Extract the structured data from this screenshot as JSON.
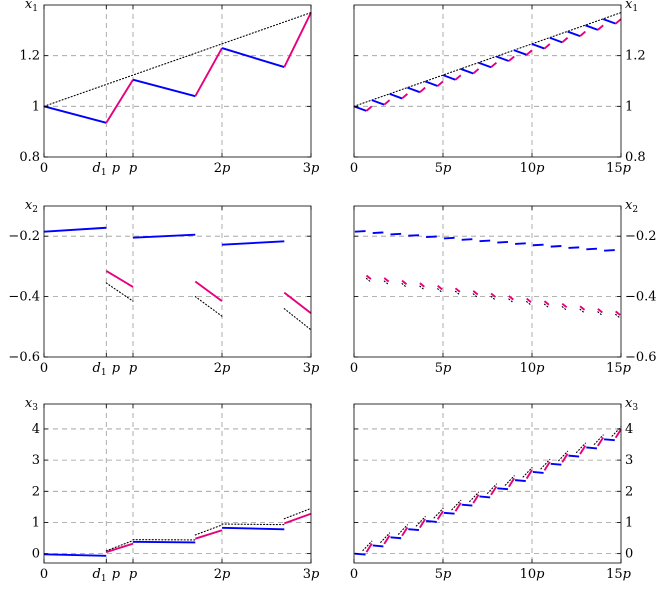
{
  "chart_data": [
    {
      "id": "x1-left",
      "type": "line",
      "ylabel": "x1",
      "xlim": [
        0,
        3
      ],
      "ylim": [
        0.8,
        1.4
      ],
      "yticks": [
        0.8,
        1,
        1.2
      ],
      "xticks": [
        {
          "v": 0,
          "label": "0"
        },
        {
          "v": 0.7,
          "label": "d1p"
        },
        {
          "v": 1,
          "label": "p"
        },
        {
          "v": 2,
          "label": "2p"
        },
        {
          "v": 3,
          "label": "3p"
        }
      ],
      "segments": [
        {
          "color": "#0000ff",
          "pts": [
            [
              0,
              1
            ],
            [
              0.7,
              0.935
            ]
          ]
        },
        {
          "color": "#e6007e",
          "pts": [
            [
              0.7,
              0.935
            ],
            [
              1,
              1.105
            ]
          ]
        },
        {
          "color": "#0000ff",
          "pts": [
            [
              1,
              1.105
            ],
            [
              1.7,
              1.04
            ]
          ]
        },
        {
          "color": "#e6007e",
          "pts": [
            [
              1.7,
              1.04
            ],
            [
              2,
              1.23
            ]
          ]
        },
        {
          "color": "#0000ff",
          "pts": [
            [
              2,
              1.23
            ],
            [
              2.7,
              1.155
            ]
          ]
        },
        {
          "color": "#e6007e",
          "pts": [
            [
              2.7,
              1.155
            ],
            [
              3,
              1.37
            ]
          ]
        },
        {
          "color": "#000000",
          "dotted": true,
          "pts": [
            [
              0,
              1
            ],
            [
              3,
              1.37
            ]
          ]
        }
      ]
    },
    {
      "id": "x1-right",
      "type": "line",
      "ylabel": "x1",
      "xlim": [
        0,
        15
      ],
      "ylim": [
        0.8,
        1.4
      ],
      "yticks": [
        0.8,
        1,
        1.2
      ],
      "xticks": [
        {
          "v": 0,
          "label": "0"
        },
        {
          "v": 5,
          "label": "5p"
        },
        {
          "v": 10,
          "label": "10p"
        },
        {
          "v": 15,
          "label": "15p"
        }
      ],
      "pattern": {
        "kind": "saw",
        "periods": 15,
        "blue": [
          1.0,
          0.0246,
          -0.018
        ],
        "pink": [
          0.982,
          0.0246,
          0.018
        ]
      },
      "segments": [
        {
          "color": "#000000",
          "dotted": true,
          "pts": [
            [
              0,
              1
            ],
            [
              15,
              1.37
            ]
          ]
        }
      ]
    },
    {
      "id": "x2-left",
      "type": "line",
      "ylabel": "x2",
      "xlim": [
        0,
        3
      ],
      "ylim": [
        -0.6,
        -0.1
      ],
      "yticks": [
        -0.6,
        -0.4,
        -0.2
      ],
      "xticks": [
        {
          "v": 0,
          "label": "0"
        },
        {
          "v": 0.7,
          "label": "d1p"
        },
        {
          "v": 1,
          "label": "p"
        },
        {
          "v": 2,
          "label": "2p"
        },
        {
          "v": 3,
          "label": "3p"
        }
      ],
      "segments": [
        {
          "color": "#0000ff",
          "pts": [
            [
              0,
              -0.185
            ],
            [
              0.7,
              -0.172
            ]
          ]
        },
        {
          "color": "#e6007e",
          "pts": [
            [
              0.7,
              -0.315
            ],
            [
              1,
              -0.368
            ]
          ]
        },
        {
          "color": "#000000",
          "dotted": true,
          "pts": [
            [
              0.7,
              -0.355
            ],
            [
              1,
              -0.415
            ]
          ]
        },
        {
          "color": "#0000ff",
          "pts": [
            [
              1,
              -0.205
            ],
            [
              1.7,
              -0.195
            ]
          ]
        },
        {
          "color": "#e6007e",
          "pts": [
            [
              1.7,
              -0.35
            ],
            [
              2,
              -0.415
            ]
          ]
        },
        {
          "color": "#000000",
          "dotted": true,
          "pts": [
            [
              1.7,
              -0.4
            ],
            [
              2,
              -0.465
            ]
          ]
        },
        {
          "color": "#0000ff",
          "pts": [
            [
              2,
              -0.228
            ],
            [
              2.7,
              -0.217
            ]
          ]
        },
        {
          "color": "#e6007e",
          "pts": [
            [
              2.7,
              -0.387
            ],
            [
              3,
              -0.455
            ]
          ]
        },
        {
          "color": "#000000",
          "dotted": true,
          "pts": [
            [
              2.7,
              -0.44
            ],
            [
              3,
              -0.51
            ]
          ]
        }
      ]
    },
    {
      "id": "x2-right",
      "type": "line",
      "ylabel": "x2",
      "xlim": [
        0,
        15
      ],
      "ylim": [
        -0.6,
        -0.1
      ],
      "yticks": [
        -0.6,
        -0.4,
        -0.2
      ],
      "xticks": [
        {
          "v": 0,
          "label": "0"
        },
        {
          "v": 5,
          "label": "5p"
        },
        {
          "v": 10,
          "label": "10p"
        },
        {
          "v": 15,
          "label": "15p"
        }
      ],
      "pattern": {
        "kind": "dash",
        "periods": 15,
        "blue": [
          -0.185,
          -0.0045,
          0.002
        ],
        "pink": [
          -0.33,
          -0.0085,
          -0.012
        ],
        "black": [
          -0.34,
          -0.0085,
          -0.012
        ]
      }
    },
    {
      "id": "x3-left",
      "type": "line",
      "ylabel": "x3",
      "xlim": [
        0,
        3
      ],
      "ylim": [
        -0.3,
        4.8
      ],
      "yticks": [
        0,
        1,
        2,
        3,
        4
      ],
      "xticks": [
        {
          "v": 0,
          "label": "0"
        },
        {
          "v": 0.7,
          "label": "d1p"
        },
        {
          "v": 1,
          "label": "p"
        },
        {
          "v": 2,
          "label": "2p"
        },
        {
          "v": 3,
          "label": "3p"
        }
      ],
      "segments": [
        {
          "color": "#0000ff",
          "pts": [
            [
              0,
              -0.02
            ],
            [
              0.7,
              -0.07
            ]
          ]
        },
        {
          "color": "#e6007e",
          "pts": [
            [
              0.7,
              0.05
            ],
            [
              1,
              0.32
            ]
          ]
        },
        {
          "color": "#000000",
          "dotted": true,
          "pts": [
            [
              0.7,
              0.09
            ],
            [
              1,
              0.42
            ]
          ]
        },
        {
          "color": "#0000ff",
          "pts": [
            [
              1,
              0.38
            ],
            [
              1.7,
              0.36
            ]
          ]
        },
        {
          "color": "#000000",
          "dotted": true,
          "pts": [
            [
              1,
              0.45
            ],
            [
              1.7,
              0.44
            ]
          ]
        },
        {
          "color": "#e6007e",
          "pts": [
            [
              1.7,
              0.48
            ],
            [
              2,
              0.75
            ]
          ]
        },
        {
          "color": "#000000",
          "dotted": true,
          "pts": [
            [
              1.7,
              0.6
            ],
            [
              2,
              0.92
            ]
          ]
        },
        {
          "color": "#0000ff",
          "pts": [
            [
              2,
              0.83
            ],
            [
              2.7,
              0.78
            ]
          ]
        },
        {
          "color": "#000000",
          "dotted": true,
          "pts": [
            [
              2,
              0.95
            ],
            [
              2.7,
              0.93
            ]
          ]
        },
        {
          "color": "#e6007e",
          "pts": [
            [
              2.7,
              0.97
            ],
            [
              3,
              1.28
            ]
          ]
        },
        {
          "color": "#000000",
          "dotted": true,
          "pts": [
            [
              2.7,
              1.12
            ],
            [
              3,
              1.45
            ]
          ]
        }
      ]
    },
    {
      "id": "x3-right",
      "type": "line",
      "ylabel": "x3",
      "xlim": [
        0,
        15
      ],
      "ylim": [
        -0.3,
        4.8
      ],
      "yticks": [
        0,
        1,
        2,
        3,
        4
      ],
      "xticks": [
        {
          "v": 0,
          "label": "0"
        },
        {
          "v": 5,
          "label": "5p"
        },
        {
          "v": 10,
          "label": "10p"
        },
        {
          "v": 15,
          "label": "15p"
        }
      ],
      "pattern": {
        "kind": "stair",
        "periods": 15,
        "blue": [
          0,
          0.262,
          -0.03
        ],
        "pink": [
          0.05,
          0.262,
          0.27
        ],
        "black": [
          0.1,
          0.262,
          0.3
        ]
      }
    }
  ]
}
